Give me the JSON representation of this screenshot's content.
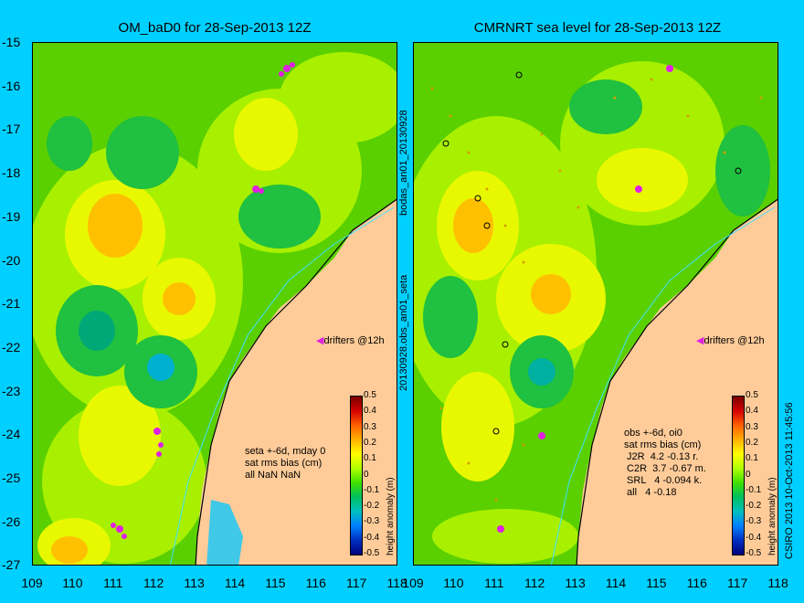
{
  "left_title": "OM_baD0 for 28-Sep-2013 12Z",
  "right_title": "CMRNRT sea level  for 28-Sep-2013 12Z",
  "y_ticks": [
    "-15",
    "-16",
    "-17",
    "-18",
    "-19",
    "-20",
    "-21",
    "-22",
    "-23",
    "-24",
    "-25",
    "-26",
    "-27"
  ],
  "x_ticks": [
    "109",
    "110",
    "111",
    "112",
    "113",
    "114",
    "115",
    "116",
    "117",
    "118"
  ],
  "middle_label_top": "bodas_an01_20130928",
  "middle_label_bottom": "20130928.obs_an01_seta",
  "drifters_label": "drifters @12h",
  "left_note": "seta +-6d, mday 0\nsat rms bias (cm)\nall NaN NaN",
  "right_note": "obs +-6d, oi0\nsat rms bias (cm)\n J2R  4.2 -0.13 r.\n C2R  3.7 -0.67 m.\n SRL   4 -0.094 k.\n all   4 -0.18",
  "colorbar": {
    "label": "height anomaly (m)",
    "ticks": [
      "0.5",
      "0.4",
      "0.3",
      "0.2",
      "0.1",
      "0",
      "-0.1",
      "-0.2",
      "-0.3",
      "-0.4",
      "-0.5"
    ]
  },
  "credit": "CSIRO 2013  10-Oct-2013 11:45:56",
  "colors": {
    "background": "#00d0ff",
    "land": "#ffcc99",
    "ocean_base": "#5ad000",
    "drifter": "#e020e0"
  }
}
